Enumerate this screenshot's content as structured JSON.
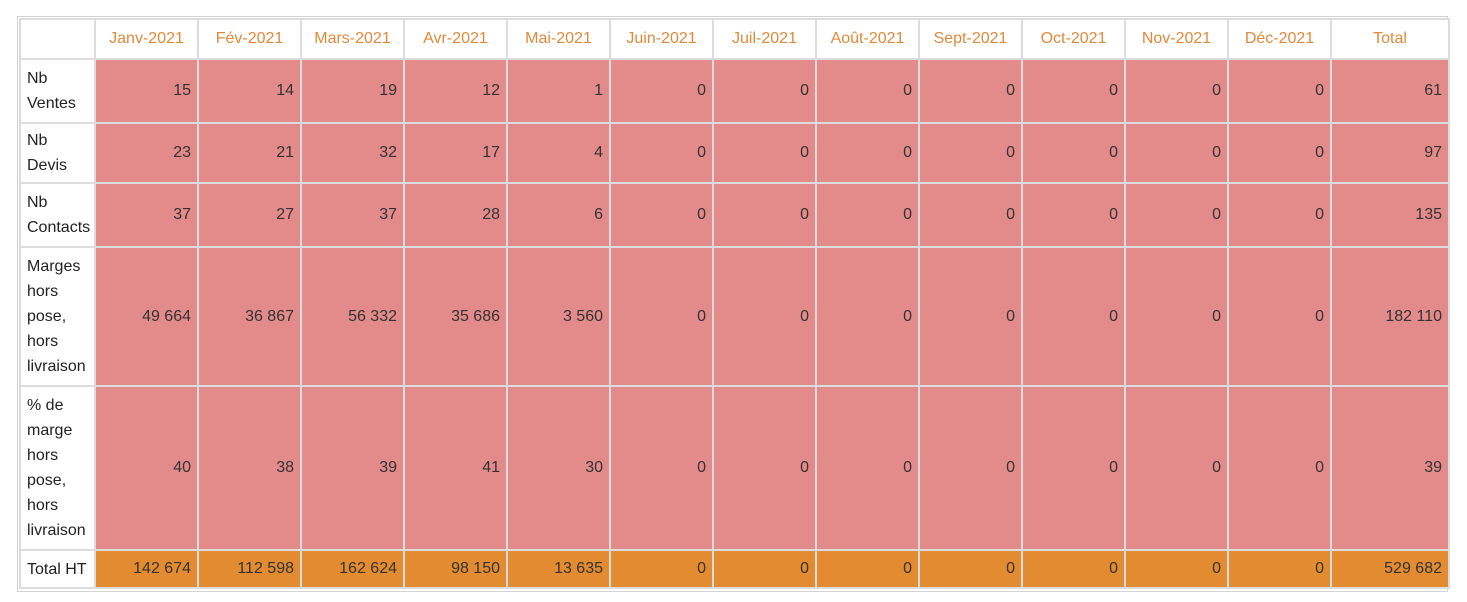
{
  "colors": {
    "header_text": "#e0893a",
    "cell_bg": "#e38b8a",
    "total_bg": "#e28b30",
    "border": "#dcdcdc"
  },
  "table": {
    "columns": [
      "Janv-2021",
      "Fév-2021",
      "Mars-2021",
      "Avr-2021",
      "Mai-2021",
      "Juin-2021",
      "Juil-2021",
      "Août-2021",
      "Sept-2021",
      "Oct-2021",
      "Nov-2021",
      "Déc-2021",
      "Total"
    ],
    "rows": [
      {
        "label": "Nb Ventes",
        "values": [
          "15",
          "14",
          "19",
          "12",
          "1",
          "0",
          "0",
          "0",
          "0",
          "0",
          "0",
          "0",
          "61"
        ]
      },
      {
        "label": "Nb Devis",
        "values": [
          "23",
          "21",
          "32",
          "17",
          "4",
          "0",
          "0",
          "0",
          "0",
          "0",
          "0",
          "0",
          "97"
        ]
      },
      {
        "label": "Nb Contacts",
        "values": [
          "37",
          "27",
          "37",
          "28",
          "6",
          "0",
          "0",
          "0",
          "0",
          "0",
          "0",
          "0",
          "135"
        ]
      },
      {
        "label": "Marges hors pose, hors livraison",
        "values": [
          "49 664",
          "36 867",
          "56 332",
          "35 686",
          "3 560",
          "0",
          "0",
          "0",
          "0",
          "0",
          "0",
          "0",
          "182 110"
        ]
      },
      {
        "label": "% de marge hors pose, hors livraison",
        "values": [
          "40",
          "38",
          "39",
          "41",
          "30",
          "0",
          "0",
          "0",
          "0",
          "0",
          "0",
          "0",
          "39"
        ]
      },
      {
        "label": "Total HT",
        "values": [
          "142 674",
          "112 598",
          "162 624",
          "98 150",
          "13 635",
          "0",
          "0",
          "0",
          "0",
          "0",
          "0",
          "0",
          "529 682"
        ]
      }
    ]
  }
}
